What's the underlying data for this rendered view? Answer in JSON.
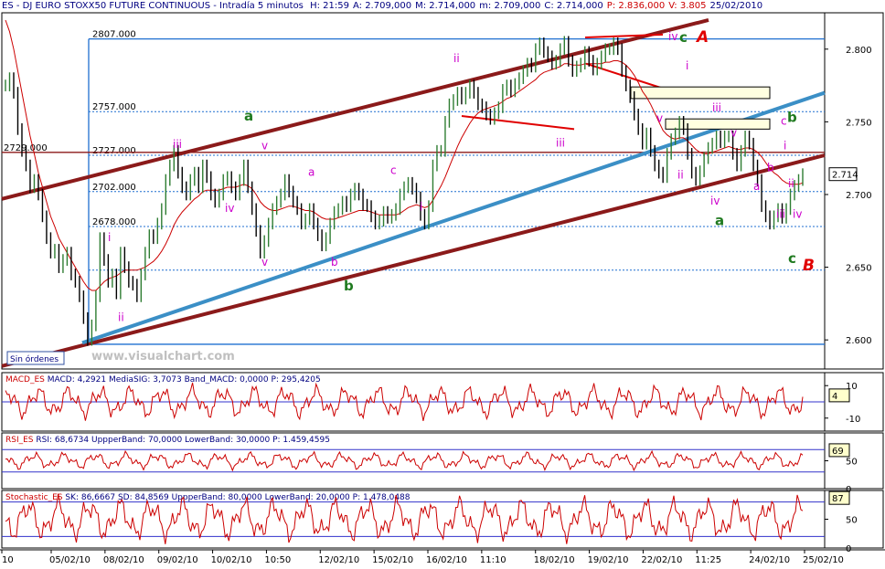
{
  "header": {
    "symbol": "ES - DJ EURO STOXX50 FUTURE CONTINUOUS - Intradía 5 minutos",
    "stats": [
      {
        "label": "H:",
        "value": "21:59"
      },
      {
        "label": "A:",
        "value": "2.709,000"
      },
      {
        "label": "M:",
        "value": "2.714,000"
      },
      {
        "label": "m:",
        "value": "2.709,000"
      },
      {
        "label": "C:",
        "value": "2.714,000"
      },
      {
        "label": "P:",
        "value": "2.836,000"
      },
      {
        "label": "V:",
        "value": "3.805"
      },
      {
        "label": "",
        "value": "25/02/2010"
      }
    ]
  },
  "colors": {
    "background": "#ffffff",
    "price": "#000000",
    "price_up": "#2e7d32",
    "moving_average": "#cc0000",
    "channel_brown": "#8b1a1a",
    "trendline_blue": "#3b8fc6",
    "level_blue": "#1f6fd0",
    "wave_magenta": "#cc00cc",
    "wave_green": "#1f7a1f",
    "wave_red": "#e00000",
    "indicator": "#cc0000",
    "band": "#3333cc"
  },
  "chart_data": [
    {
      "type": "line",
      "panel": "price",
      "ylim": [
        2.58,
        2.825
      ],
      "y_ticks": [
        "2.800",
        "2.750",
        "2.700",
        "2.650",
        "2.600"
      ],
      "current_value": "2.714",
      "watermark": "www.visualchart.com",
      "status_label": "Sin órdenes",
      "x_ticks": [
        "10",
        "05/02/10",
        "08/02/10",
        "09/02/10",
        "10/02/10",
        "10:50",
        "12/02/10",
        "15/02/10",
        "16/02/10",
        "11:10",
        "18/02/10",
        "19/02/10",
        "22/02/10",
        "11:25",
        "24/02/10",
        "25/02/10"
      ],
      "levels": [
        {
          "label": "2807.000",
          "value": 2.807,
          "style": "solid"
        },
        {
          "label": "2757.000",
          "value": 2.757,
          "style": "dotted"
        },
        {
          "label": "2727.000",
          "value": 2.727,
          "style": "dotted"
        },
        {
          "label": "2702.000",
          "value": 2.702,
          "style": "dotted"
        },
        {
          "label": "2678.000",
          "value": 2.678,
          "style": "dotted"
        },
        {
          "label": "",
          "value": 2.648,
          "style": "dotted"
        },
        {
          "label": "",
          "value": 2.597,
          "style": "solid"
        }
      ],
      "left_level_label": "2729.000",
      "left_level_value": 2.729,
      "series": [
        {
          "values": [
            2.775,
            2.78,
            2.77,
            2.745,
            2.73,
            2.72,
            2.705,
            2.71,
            2.7,
            2.685,
            2.67,
            2.66,
            2.662,
            2.65,
            2.655,
            2.66,
            2.645,
            2.64,
            2.63,
            2.615,
            2.6,
            2.61,
            2.63,
            2.67,
            2.655,
            2.64,
            2.645,
            2.632,
            2.66,
            2.65,
            2.64,
            2.638,
            2.63,
            2.645,
            2.66,
            2.672,
            2.67,
            2.68,
            2.69,
            2.71,
            2.72,
            2.73,
            2.715,
            2.705,
            2.7,
            2.71,
            2.715,
            2.705,
            2.72,
            2.712,
            2.7,
            2.695,
            2.7,
            2.71,
            2.712,
            2.705,
            2.7,
            2.71,
            2.72,
            2.705,
            2.69,
            2.675,
            2.66,
            2.668,
            2.68,
            2.69,
            2.695,
            2.7,
            2.71,
            2.702,
            2.695,
            2.69,
            2.68,
            2.683,
            2.69,
            2.68,
            2.672,
            2.665,
            2.67,
            2.68,
            2.688,
            2.69,
            2.695,
            2.692,
            2.7,
            2.704,
            2.7,
            2.693,
            2.692,
            2.685,
            2.68,
            2.682,
            2.688,
            2.684,
            2.686,
            2.69,
            2.7,
            2.705,
            2.708,
            2.704,
            2.698,
            2.686,
            2.68,
            2.692,
            2.72,
            2.73,
            2.73,
            2.75,
            2.762,
            2.765,
            2.77,
            2.766,
            2.77,
            2.775,
            2.77,
            2.762,
            2.76,
            2.755,
            2.752,
            2.756,
            2.76,
            2.772,
            2.775,
            2.771,
            2.776,
            2.78,
            2.785,
            2.79,
            2.788,
            2.8,
            2.804,
            2.798,
            2.795,
            2.79,
            2.792,
            2.8,
            2.805,
            2.792,
            2.785,
            2.788,
            2.79,
            2.798,
            2.792,
            2.786,
            2.79,
            2.795,
            2.8,
            2.8,
            2.804,
            2.8,
            2.785,
            2.775,
            2.767,
            2.755,
            2.745,
            2.735,
            2.742,
            2.73,
            2.72,
            2.715,
            2.712,
            2.728,
            2.738,
            2.742,
            2.75,
            2.745,
            2.728,
            2.715,
            2.71,
            2.716,
            2.725,
            2.732,
            2.735,
            2.74,
            2.736,
            2.74,
            2.74,
            2.728,
            2.72,
            2.73,
            2.74,
            2.735,
            2.72,
            2.71,
            2.692,
            2.685,
            2.68,
            2.685,
            2.69,
            2.684,
            2.69,
            2.7,
            2.706,
            2.71,
            2.714
          ],
          "moving_average": [
            2.82,
            2.812,
            2.8,
            2.785,
            2.77,
            2.755,
            2.74,
            2.728,
            2.715,
            2.705,
            2.695,
            2.685,
            2.678,
            2.67,
            2.665,
            2.66,
            2.655,
            2.65,
            2.645,
            2.64,
            2.636,
            2.634,
            2.634,
            2.637,
            2.64,
            2.642,
            2.643,
            2.644,
            2.646,
            2.648,
            2.648,
            2.648,
            2.648,
            2.649,
            2.65,
            2.652,
            2.654,
            2.657,
            2.661,
            2.666,
            2.672,
            2.679,
            2.684,
            2.688,
            2.691,
            2.694,
            2.697,
            2.699,
            2.702,
            2.703,
            2.703,
            2.703,
            2.703,
            2.704,
            2.705,
            2.705,
            2.705,
            2.706,
            2.707,
            2.706,
            2.704,
            2.7,
            2.695,
            2.692,
            2.69,
            2.689,
            2.689,
            2.69,
            2.691,
            2.692,
            2.692,
            2.691,
            2.69,
            2.689,
            2.689,
            2.688,
            2.686,
            2.684,
            2.683,
            2.683,
            2.683,
            2.684,
            2.685,
            2.686,
            2.687,
            2.688,
            2.689,
            2.689,
            2.689,
            2.688,
            2.687,
            2.686,
            2.686,
            2.686,
            2.686,
            2.686,
            2.687,
            2.689,
            2.691,
            2.692,
            2.693,
            2.692,
            2.691,
            2.692,
            2.696,
            2.701,
            2.706,
            2.712,
            2.719,
            2.726,
            2.733,
            2.739,
            2.744,
            2.749,
            2.753,
            2.756,
            2.758,
            2.759,
            2.76,
            2.761,
            2.762,
            2.764,
            2.766,
            2.767,
            2.769,
            2.771,
            2.773,
            2.775,
            2.777,
            2.779,
            2.782,
            2.784,
            2.785,
            2.786,
            2.787,
            2.788,
            2.79,
            2.79,
            2.789,
            2.789,
            2.789,
            2.79,
            2.79,
            2.79,
            2.79,
            2.79,
            2.791,
            2.791,
            2.792,
            2.792,
            2.791,
            2.789,
            2.786,
            2.782,
            2.777,
            2.771,
            2.767,
            2.762,
            2.756,
            2.75,
            2.744,
            2.741,
            2.739,
            2.738,
            2.739,
            2.739,
            2.737,
            2.734,
            2.731,
            2.729,
            2.728,
            2.728,
            2.729,
            2.73,
            2.731,
            2.732,
            2.733,
            2.732,
            2.731,
            2.731,
            2.732,
            2.732,
            2.731,
            2.729,
            2.726,
            2.722,
            2.718,
            2.715,
            2.713,
            2.71,
            2.708,
            2.707,
            2.707,
            2.707,
            2.708
          ]
        }
      ],
      "wave_labels": {
        "magenta": [
          "i",
          "ii",
          "iii",
          "iv",
          "v",
          "a",
          "b",
          "c",
          "i",
          "ii",
          "iii",
          "iv",
          "v",
          "i",
          "ii",
          "iii",
          "iv",
          "v",
          "a",
          "b",
          "c",
          "i",
          "ii",
          "iii",
          "iv",
          "v"
        ],
        "green": [
          "a",
          "b",
          "c",
          "b",
          "a",
          "c"
        ],
        "red": [
          "A",
          "B"
        ]
      }
    },
    {
      "type": "line",
      "panel": "macd",
      "title": "MACD_ES",
      "readouts": [
        {
          "label": "MACD:",
          "value": "4,2921"
        },
        {
          "label": "MediaSIG:",
          "value": "3,7073"
        },
        {
          "label": "Band_MACD:",
          "value": "0,0000"
        },
        {
          "label": "P:",
          "value": "295,4205"
        }
      ],
      "y_ticks": [
        "10",
        "-10"
      ],
      "current_value": "4",
      "ylim": [
        -18,
        18
      ],
      "band_values": [
        0
      ]
    },
    {
      "type": "line",
      "panel": "rsi",
      "title": "RSI_ES",
      "readouts": [
        {
          "label": "RSI:",
          "value": "68,6734"
        },
        {
          "label": "UppperBand:",
          "value": "70,0000"
        },
        {
          "label": "LowerBand:",
          "value": "30,0000"
        },
        {
          "label": "P:",
          "value": "1.459,4595"
        }
      ],
      "y_ticks": [
        "50",
        "0"
      ],
      "current_value": "69",
      "ylim": [
        0,
        100
      ],
      "band_values": [
        70,
        30
      ]
    },
    {
      "type": "line",
      "panel": "stochastic",
      "title": "Stochastic_ES",
      "readouts": [
        {
          "label": "SK:",
          "value": "86,6667"
        },
        {
          "label": "SD:",
          "value": "84,8569"
        },
        {
          "label": "UppperBand:",
          "value": "80,0000"
        },
        {
          "label": "LowerBand:",
          "value": "20,0000"
        },
        {
          "label": "P:",
          "value": "1.478,0488"
        }
      ],
      "y_ticks": [
        "50",
        "0"
      ],
      "current_value": "87",
      "ylim": [
        0,
        100
      ],
      "band_values": [
        80,
        20
      ]
    }
  ]
}
